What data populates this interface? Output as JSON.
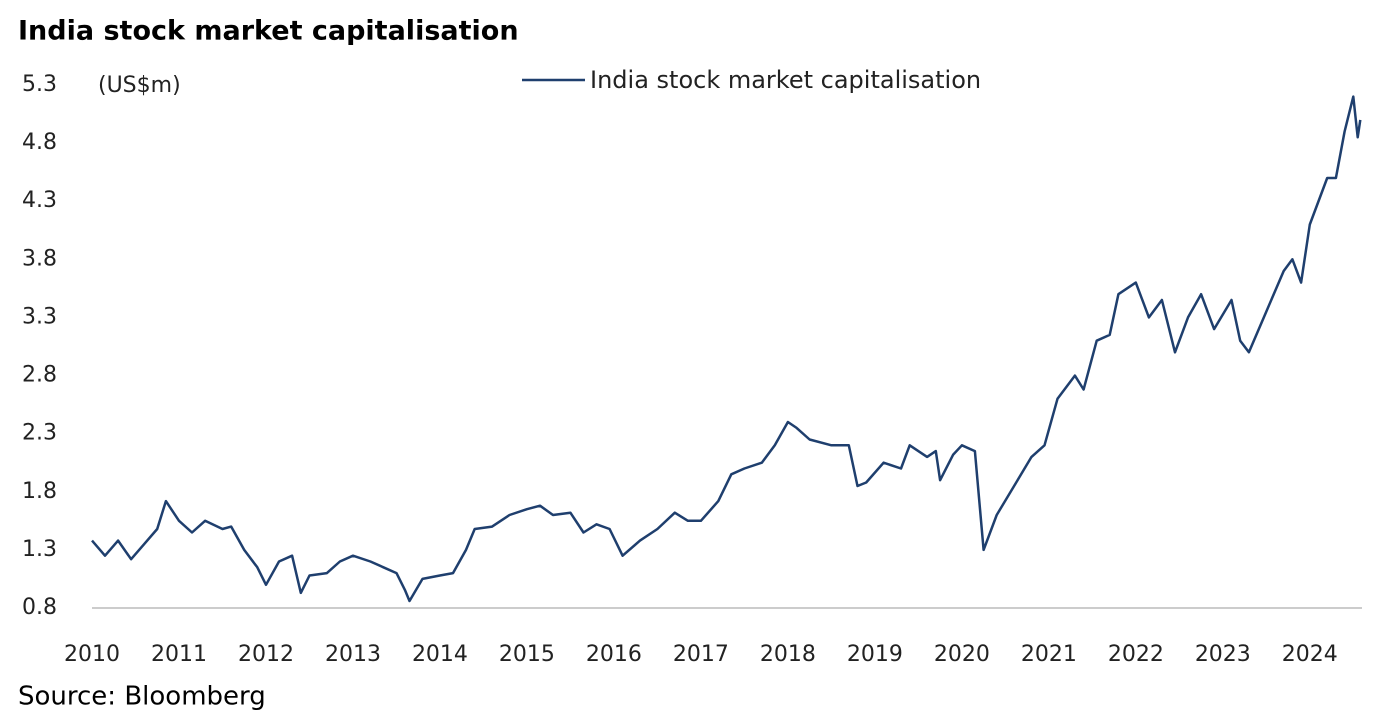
{
  "chart_data": {
    "type": "line",
    "title": "India stock market capitalisation",
    "ylabel": "(US$m)",
    "source": "Source: Bloomberg",
    "x": [
      2010.0,
      2010.15,
      2010.3,
      2010.45,
      2010.6,
      2010.75,
      2010.85,
      2011.0,
      2011.15,
      2011.3,
      2011.5,
      2011.6,
      2011.75,
      2011.9,
      2012.0,
      2012.15,
      2012.3,
      2012.4,
      2012.5,
      2012.7,
      2012.85,
      2013.0,
      2013.2,
      2013.35,
      2013.5,
      2013.6,
      2013.65,
      2013.8,
      2014.0,
      2014.15,
      2014.3,
      2014.4,
      2014.6,
      2014.8,
      2015.0,
      2015.15,
      2015.3,
      2015.5,
      2015.65,
      2015.8,
      2015.95,
      2016.1,
      2016.3,
      2016.5,
      2016.7,
      2016.85,
      2017.0,
      2017.2,
      2017.35,
      2017.5,
      2017.7,
      2017.85,
      2018.0,
      2018.1,
      2018.25,
      2018.5,
      2018.7,
      2018.8,
      2018.9,
      2019.1,
      2019.3,
      2019.4,
      2019.6,
      2019.7,
      2019.75,
      2019.9,
      2020.0,
      2020.15,
      2020.25,
      2020.4,
      2020.6,
      2020.8,
      2020.95,
      2021.1,
      2021.3,
      2021.4,
      2021.55,
      2021.7,
      2021.8,
      2022.0,
      2022.15,
      2022.3,
      2022.45,
      2022.6,
      2022.75,
      2022.9,
      2023.1,
      2023.2,
      2023.3,
      2023.5,
      2023.7,
      2023.8,
      2023.9,
      2024.0,
      2024.2,
      2024.3,
      2024.4,
      2024.5,
      2024.55,
      2024.58
    ],
    "series": [
      {
        "name": "India stock market capitalisation",
        "color": "#1f3f6e",
        "values": [
          1.38,
          1.25,
          1.38,
          1.22,
          1.35,
          1.48,
          1.72,
          1.55,
          1.45,
          1.55,
          1.48,
          1.5,
          1.3,
          1.15,
          1.0,
          1.2,
          1.25,
          0.93,
          1.08,
          1.1,
          1.2,
          1.25,
          1.2,
          1.15,
          1.1,
          0.95,
          0.86,
          1.05,
          1.08,
          1.1,
          1.3,
          1.48,
          1.5,
          1.6,
          1.65,
          1.68,
          1.6,
          1.62,
          1.45,
          1.52,
          1.48,
          1.25,
          1.38,
          1.48,
          1.62,
          1.55,
          1.55,
          1.72,
          1.95,
          2.0,
          2.05,
          2.2,
          2.4,
          2.35,
          2.25,
          2.2,
          2.2,
          1.85,
          1.88,
          2.05,
          2.0,
          2.2,
          2.1,
          2.15,
          1.9,
          2.12,
          2.2,
          2.15,
          1.3,
          1.6,
          1.85,
          2.1,
          2.2,
          2.6,
          2.8,
          2.68,
          3.1,
          3.15,
          3.5,
          3.6,
          3.3,
          3.45,
          3.0,
          3.3,
          3.5,
          3.2,
          3.45,
          3.1,
          3.0,
          3.35,
          3.7,
          3.8,
          3.6,
          4.1,
          4.5,
          4.5,
          4.9,
          5.2,
          4.85,
          5.0
        ]
      }
    ],
    "xlim": [
      2010,
      2024.6
    ],
    "xticks": [
      2010,
      2011,
      2012,
      2013,
      2014,
      2015,
      2016,
      2017,
      2018,
      2019,
      2020,
      2021,
      2022,
      2023,
      2024
    ],
    "ylim": [
      0.8,
      5.3
    ],
    "yticks": [
      0.8,
      1.3,
      1.8,
      2.3,
      2.8,
      3.3,
      3.8,
      4.3,
      4.8,
      5.3
    ],
    "legend": "top"
  }
}
